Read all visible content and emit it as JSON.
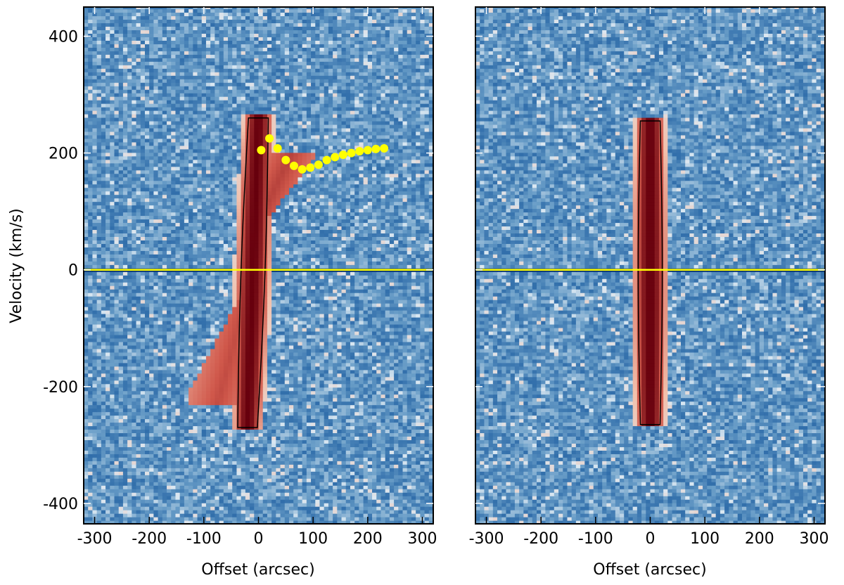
{
  "chart_data": [
    {
      "type": "heatmap",
      "panel": "left",
      "xlabel": "Offset (arcsec)",
      "ylabel": "Velocity (km/s)",
      "xlim": [
        -320,
        320
      ],
      "ylim": [
        -435,
        450
      ],
      "x_ticks": [
        -300,
        -200,
        -100,
        0,
        100,
        200,
        300
      ],
      "x_tick_labels": [
        "-300",
        "-200",
        "-100",
        "0",
        "100",
        "200",
        "300"
      ],
      "y_ticks": [
        -400,
        -200,
        0,
        200,
        400
      ],
      "y_tick_labels": [
        "-400",
        "-200",
        "0",
        "200",
        "400"
      ],
      "colormap": [
        "#08306b",
        "#2c6aa8",
        "#6a9ec8",
        "#dbe8f2",
        "#f2c1ac",
        "#d0584b",
        "#67000d"
      ],
      "contours": true,
      "reference_line": {
        "y": 0,
        "color": "#ffff00"
      },
      "overlay_points": {
        "color": "#ffff00",
        "x": [
          5,
          20,
          35,
          50,
          65,
          80,
          95,
          110,
          125,
          140,
          155,
          170,
          185,
          200,
          215,
          230
        ],
        "y": [
          205,
          225,
          208,
          188,
          178,
          172,
          175,
          180,
          188,
          193,
          197,
          200,
          203,
          205,
          207,
          208
        ]
      },
      "emission": {
        "main_ridge": {
          "x_at_vmin": -20,
          "x_at_vmax": 0,
          "v_range": [
            -270,
            265
          ]
        },
        "upper_extension": {
          "x_range": [
            0,
            100
          ],
          "v_range": [
            80,
            200
          ]
        },
        "lower_extension": {
          "x_range": [
            -130,
            -20
          ],
          "v_range": [
            -230,
            -40
          ]
        }
      },
      "grid": false
    },
    {
      "type": "heatmap",
      "panel": "right",
      "xlabel": "Offset (arcsec)",
      "ylabel": "",
      "xlim": [
        -320,
        320
      ],
      "ylim": [
        -435,
        450
      ],
      "x_ticks": [
        -300,
        -200,
        -100,
        0,
        100,
        200,
        300
      ],
      "x_tick_labels": [
        "-300",
        "-200",
        "-100",
        "0",
        "100",
        "200",
        "300"
      ],
      "colormap": [
        "#08306b",
        "#2c6aa8",
        "#6a9ec8",
        "#dbe8f2",
        "#f2c1ac",
        "#d0584b",
        "#67000d"
      ],
      "contours": true,
      "reference_line": {
        "y": 0,
        "color": "#ffff00"
      },
      "emission": {
        "main_ridge": {
          "x_at_vmin": 0,
          "x_at_vmax": 0,
          "v_range": [
            -265,
            260
          ]
        }
      },
      "grid": false
    }
  ]
}
